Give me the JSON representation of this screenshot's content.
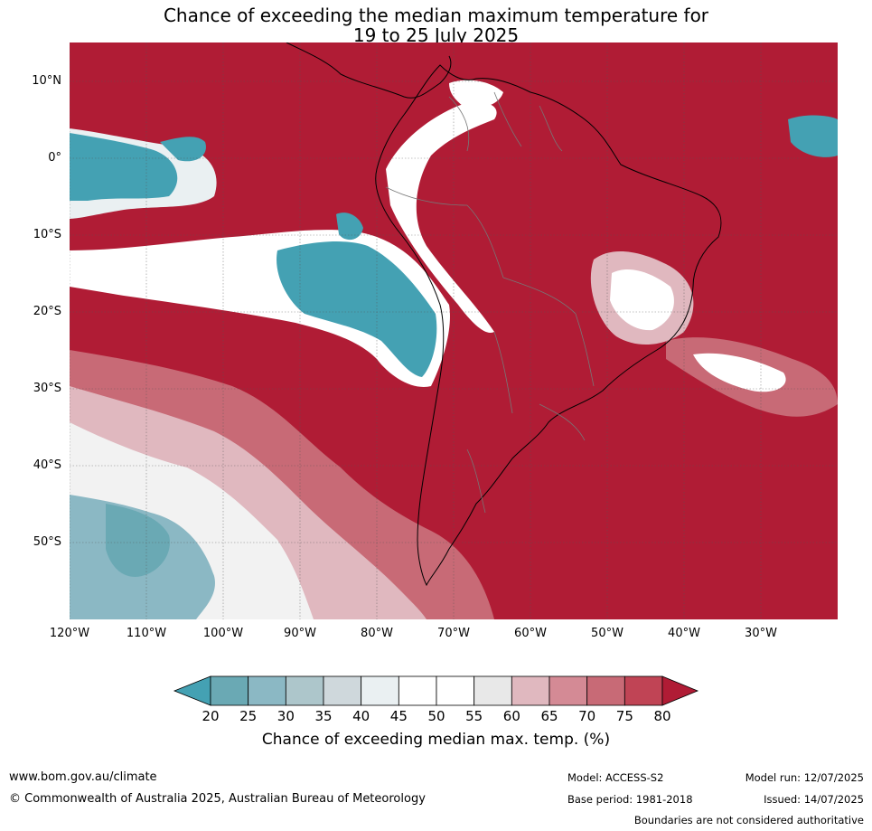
{
  "title": {
    "line1": "Chance of exceeding the median maximum temperature for",
    "line2": "19 to 25 July 2025"
  },
  "axes": {
    "lat_labels": [
      "10°N",
      "0°",
      "10°S",
      "20°S",
      "30°S",
      "40°S",
      "50°S"
    ],
    "lon_labels": [
      "120°W",
      "110°W",
      "100°W",
      "90°W",
      "80°W",
      "70°W",
      "60°W",
      "50°W",
      "40°W",
      "30°W"
    ]
  },
  "colorbar": {
    "ticks": [
      "20",
      "25",
      "30",
      "35",
      "40",
      "45",
      "50",
      "55",
      "60",
      "65",
      "70",
      "75",
      "80"
    ],
    "colors": [
      "#44a1b3",
      "#6aa9b4",
      "#8bb8c4",
      "#adc6cb",
      "#cfd8dc",
      "#eaf0f2",
      "#ffffff",
      "#ffffff",
      "#e8e8e8",
      "#e0b8bf",
      "#d48a95",
      "#c86a76",
      "#c04455",
      "#b01c35"
    ],
    "label": "Chance of exceeding median max. temp. (%)"
  },
  "footer": {
    "website": "www.bom.gov.au/climate",
    "copyright": "© Commonwealth of Australia 2025, Australian Bureau of Meteorology",
    "model": "Model: ACCESS-S2",
    "base_period": "Base period: 1981-2018",
    "model_run": "Model run: 12/07/2025",
    "issued": "Issued: 14/07/2025",
    "disclaimer": "Boundaries are not considered authoritative"
  },
  "map_colors": {
    "high": "#b01c35",
    "mid_high": "#c86a76",
    "light_high": "#e0b8bf",
    "neutral": "#ffffff",
    "light_low": "#cfd8dc",
    "low": "#44a1b3"
  }
}
